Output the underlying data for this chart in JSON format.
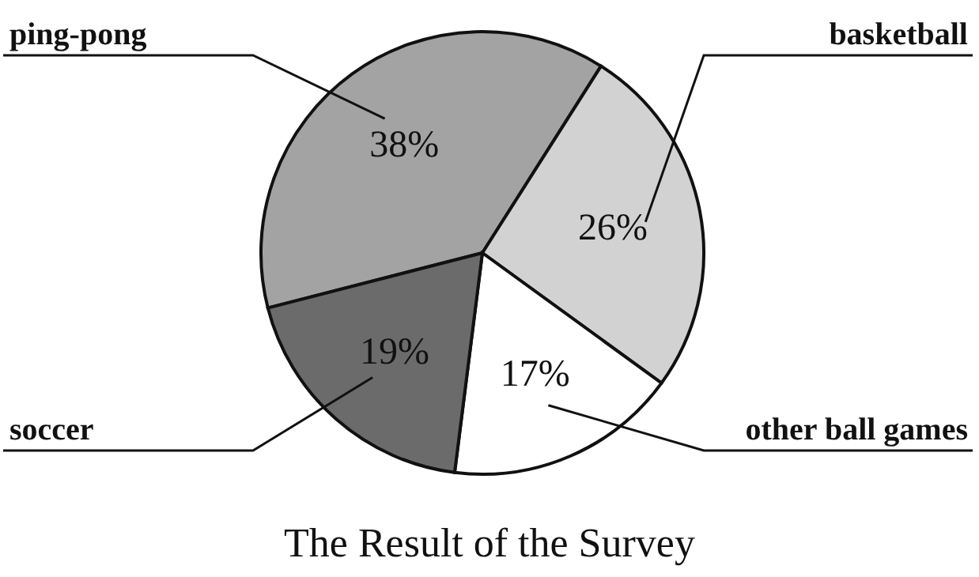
{
  "chart_data": {
    "type": "pie",
    "title": "The Result of the Survey",
    "categories": [
      "ping-pong",
      "basketball",
      "other ball games",
      "soccer"
    ],
    "values": [
      38,
      26,
      17,
      19
    ],
    "value_labels": [
      "38%",
      "26%",
      "17%",
      "19%"
    ],
    "colors": [
      "#a3a3a3",
      "#d2d2d2",
      "#ffffff",
      "#6b6b6b"
    ]
  }
}
